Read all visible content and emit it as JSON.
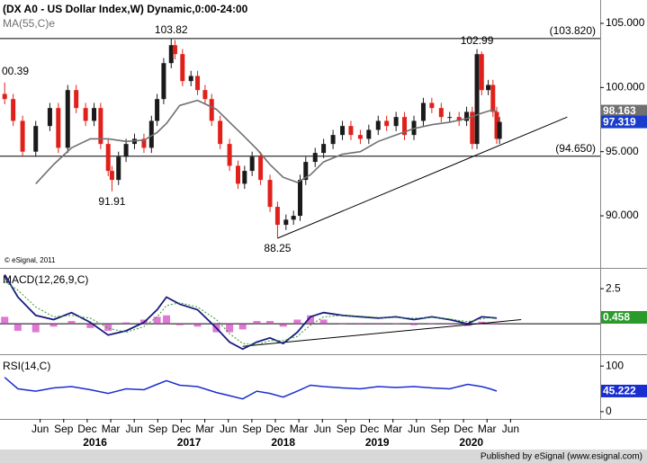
{
  "chart_data": [
    {
      "type": "candlestick",
      "title": "(DX A0 - US Dollar Index,W) Dynamic,0:00-24:00",
      "watermark": "© eSignal, 2011",
      "up_color": "#1a1a1a",
      "down_color": "#e0201a",
      "x": [
        2015.04,
        2015.13,
        2015.23,
        2015.37,
        2015.52,
        2015.61,
        2015.71,
        2015.8,
        2015.9,
        2015.99,
        2016.06,
        2016.14,
        2016.18,
        2016.25,
        2016.33,
        2016.42,
        2016.52,
        2016.6,
        2016.66,
        2016.73,
        2016.81,
        2016.85,
        2016.93,
        2017.02,
        2017.09,
        2017.17,
        2017.24,
        2017.33,
        2017.43,
        2017.52,
        2017.59,
        2017.67,
        2017.76,
        2017.86,
        2017.94,
        2018.03,
        2018.11,
        2018.18,
        2018.24,
        2018.34,
        2018.43,
        2018.53,
        2018.63,
        2018.72,
        2018.82,
        2018.91,
        2019.01,
        2019.1,
        2019.2,
        2019.29,
        2019.39,
        2019.49,
        2019.58,
        2019.68,
        2019.77,
        2019.87,
        2019.95,
        2020.01,
        2020.06,
        2020.11,
        2020.18,
        2020.23,
        2020.27,
        2020.3
      ],
      "open": [
        99.5,
        99.1,
        97.4,
        95.0,
        97.0,
        98.4,
        95.3,
        99.8,
        98.4,
        97.4,
        98.4,
        95.6,
        93.5,
        92.8,
        94.6,
        95.6,
        96.0,
        95.3,
        97.4,
        99.1,
        101.9,
        103.3,
        102.6,
        100.5,
        100.9,
        99.8,
        99.1,
        97.4,
        95.6,
        93.9,
        92.5,
        93.5,
        94.6,
        92.8,
        90.7,
        89.3,
        89.7,
        90.0,
        92.8,
        94.2,
        94.9,
        95.6,
        96.3,
        97.0,
        96.3,
        96.0,
        96.7,
        97.4,
        97.0,
        97.7,
        96.3,
        97.4,
        98.8,
        98.4,
        97.7,
        97.7,
        97.4,
        98.1,
        95.6,
        102.6,
        99.8,
        100.2,
        98.1,
        96.0
      ],
      "high": [
        100.39,
        99.5,
        97.8,
        97.4,
        98.8,
        98.8,
        100.2,
        100.2,
        98.8,
        98.8,
        98.8,
        96.0,
        93.9,
        95.0,
        96.0,
        96.4,
        96.4,
        97.8,
        99.5,
        102.3,
        103.82,
        103.7,
        103.0,
        101.3,
        101.3,
        100.2,
        99.5,
        97.8,
        96.0,
        94.3,
        93.9,
        95.0,
        95.0,
        93.2,
        91.1,
        90.1,
        90.4,
        93.2,
        94.6,
        95.3,
        96.0,
        96.7,
        97.4,
        97.4,
        96.7,
        97.1,
        97.8,
        97.8,
        98.1,
        98.1,
        97.8,
        99.2,
        99.2,
        98.8,
        98.1,
        98.1,
        98.5,
        98.5,
        102.99,
        102.8,
        100.6,
        100.6,
        98.5,
        97.7
      ],
      "low": [
        98.7,
        97.0,
        94.6,
        94.6,
        96.6,
        94.9,
        94.9,
        98.0,
        97.0,
        97.0,
        95.2,
        93.1,
        91.91,
        92.4,
        94.2,
        95.2,
        94.9,
        94.9,
        97.0,
        98.7,
        101.5,
        102.2,
        100.1,
        100.1,
        99.4,
        98.7,
        97.0,
        95.2,
        93.5,
        92.1,
        92.1,
        93.1,
        92.4,
        90.3,
        88.25,
        88.9,
        89.3,
        89.6,
        92.4,
        93.8,
        94.5,
        95.2,
        95.9,
        95.9,
        95.6,
        95.6,
        96.3,
        96.6,
        96.6,
        95.9,
        95.9,
        97.0,
        98.0,
        97.3,
        97.3,
        97.0,
        97.0,
        95.2,
        95.2,
        99.4,
        99.4,
        97.7,
        95.6,
        95.6
      ],
      "close": [
        99.1,
        97.4,
        95.0,
        97.0,
        98.4,
        95.3,
        99.8,
        98.4,
        97.4,
        98.4,
        95.6,
        93.5,
        92.8,
        94.6,
        95.6,
        96.0,
        95.3,
        97.4,
        99.1,
        101.9,
        103.3,
        102.6,
        100.5,
        100.9,
        99.8,
        99.1,
        97.4,
        95.6,
        93.9,
        92.5,
        93.5,
        94.6,
        92.8,
        90.7,
        89.3,
        89.7,
        90.0,
        92.8,
        94.2,
        94.9,
        95.6,
        96.3,
        97.0,
        96.3,
        96.0,
        96.7,
        97.4,
        97.0,
        97.7,
        96.3,
        97.4,
        98.8,
        98.4,
        97.7,
        97.7,
        97.4,
        98.1,
        95.6,
        102.6,
        99.8,
        100.2,
        98.1,
        96.0,
        97.319
      ],
      "last_color": "#1a3ccc",
      "ma": {
        "name": "MA(55,C)e",
        "color": "#707070",
        "x": [
          2015.37,
          2015.56,
          2015.75,
          2015.95,
          2016.14,
          2016.33,
          2016.52,
          2016.66,
          2016.76,
          2016.9,
          2017.09,
          2017.29,
          2017.43,
          2017.57,
          2017.72,
          2017.86,
          2018.0,
          2018.15,
          2018.29,
          2018.43,
          2018.63,
          2018.82,
          2019.01,
          2019.2,
          2019.39,
          2019.58,
          2019.77,
          2019.96,
          2020.11,
          2020.2,
          2020.27
        ],
        "values": [
          92.5,
          94.0,
          95.3,
          96.0,
          96.0,
          95.8,
          95.9,
          96.5,
          97.2,
          98.6,
          99.0,
          98.3,
          97.3,
          96.3,
          95.2,
          94.0,
          93.0,
          92.6,
          93.2,
          94.2,
          94.8,
          95.0,
          95.8,
          96.3,
          96.8,
          97.1,
          97.3,
          97.6,
          98.0,
          98.2,
          98.163
        ]
      },
      "hlines": [
        {
          "value": 103.82,
          "label": "(103.820)"
        },
        {
          "value": 94.65,
          "label": "(94.650)"
        }
      ],
      "trendline": {
        "x": [
          2017.94,
          2021.02
        ],
        "values": [
          88.25,
          97.7
        ]
      },
      "annotations": [
        "00.39",
        "103.82",
        "91.91",
        "88.25",
        "102.99"
      ],
      "ylim": [
        85.94,
        106.82
      ],
      "yticks": [
        {
          "value": 105,
          "label": "105.000"
        },
        {
          "value": 100,
          "label": "100.000"
        },
        {
          "value": 95,
          "label": "95.000"
        },
        {
          "value": 90,
          "label": "90.000"
        }
      ]
    },
    {
      "type": "macd",
      "title": "MACD(12,26,9,C)",
      "x": [
        2015.04,
        2015.18,
        2015.37,
        2015.56,
        2015.75,
        2015.95,
        2016.14,
        2016.33,
        2016.52,
        2016.66,
        2016.76,
        2016.9,
        2017.09,
        2017.29,
        2017.43,
        2017.57,
        2017.72,
        2017.86,
        2018.0,
        2018.15,
        2018.29,
        2018.43,
        2018.63,
        2018.82,
        2019.01,
        2019.2,
        2019.39,
        2019.58,
        2019.77,
        2019.96,
        2020.11,
        2020.2,
        2020.27
      ],
      "series": [
        {
          "color": "#1a1a80",
          "values": [
            3.5,
            1.9,
            0.6,
            0.3,
            0.8,
            0.1,
            -0.8,
            -0.5,
            0.1,
            1.0,
            1.9,
            1.4,
            1.0,
            -0.3,
            -1.3,
            -1.8,
            -1.3,
            -1.0,
            -1.4,
            -0.6,
            0.5,
            0.8,
            0.6,
            0.5,
            0.4,
            0.5,
            0.3,
            0.5,
            0.3,
            0.0,
            0.5,
            0.45,
            0.404
          ]
        },
        {
          "color": "#2a9a2a",
          "dashed": true,
          "values": [
            3.0,
            2.4,
            1.2,
            0.5,
            0.6,
            0.4,
            -0.3,
            -0.6,
            -0.2,
            0.5,
            1.3,
            1.5,
            1.2,
            0.3,
            -0.7,
            -1.4,
            -1.5,
            -1.2,
            -1.2,
            -0.9,
            -0.1,
            0.5,
            0.6,
            0.55,
            0.45,
            0.45,
            0.4,
            0.45,
            0.35,
            0.15,
            0.35,
            0.45,
            0.458
          ]
        }
      ],
      "histogram": {
        "color": "#d040c0",
        "values": [
          0.5,
          -0.5,
          -0.6,
          -0.2,
          0.2,
          -0.3,
          -0.5,
          0.1,
          0.3,
          0.5,
          0.6,
          -0.1,
          -0.2,
          -0.6,
          -0.6,
          -0.4,
          0.2,
          0.2,
          -0.2,
          0.3,
          0.6,
          0.3,
          0,
          -0.05,
          -0.05,
          0.05,
          -0.1,
          0.05,
          -0.05,
          -0.15,
          0.15,
          0,
          -0.054
        ]
      },
      "hline": 0,
      "trendline": {
        "x": [
          2017.57,
          2020.53
        ],
        "values": [
          -1.6,
          0.3
        ]
      },
      "ylim": [
        -2.1,
        3.85
      ],
      "yticks": [
        2.5
      ]
    },
    {
      "type": "rsi",
      "title": "RSI(14,C)",
      "x": [
        2015.04,
        2015.18,
        2015.37,
        2015.56,
        2015.75,
        2015.95,
        2016.14,
        2016.33,
        2016.52,
        2016.66,
        2016.76,
        2016.9,
        2017.09,
        2017.29,
        2017.43,
        2017.57,
        2017.72,
        2017.86,
        2018.0,
        2018.15,
        2018.29,
        2018.43,
        2018.63,
        2018.82,
        2019.01,
        2019.2,
        2019.39,
        2019.58,
        2019.77,
        2019.96,
        2020.11,
        2020.2,
        2020.27
      ],
      "color": "#1a2ed0",
      "values": [
        75,
        50,
        45,
        52,
        55,
        48,
        40,
        50,
        48,
        60,
        68,
        58,
        55,
        42,
        35,
        28,
        45,
        40,
        32,
        45,
        58,
        55,
        52,
        50,
        55,
        53,
        55,
        52,
        50,
        60,
        55,
        50,
        45.222
      ],
      "ylim": [
        -14,
        122
      ],
      "yticks": [
        100,
        0
      ],
      "xlim": [
        2014.99,
        2021.37
      ],
      "xticks": [
        {
          "value": 2015.417,
          "label": "Jun"
        },
        {
          "value": 2015.667,
          "label": "Sep"
        },
        {
          "value": 2015.917,
          "label": "Dec"
        },
        {
          "value": 2016.167,
          "label": "Mar"
        },
        {
          "value": 2016.417,
          "label": "Jun"
        },
        {
          "value": 2016.667,
          "label": "Sep"
        },
        {
          "value": 2016.917,
          "label": "Dec"
        },
        {
          "value": 2017.167,
          "label": "Mar"
        },
        {
          "value": 2017.417,
          "label": "Jun"
        },
        {
          "value": 2017.667,
          "label": "Sep"
        },
        {
          "value": 2017.917,
          "label": "Dec"
        },
        {
          "value": 2018.167,
          "label": "Mar"
        },
        {
          "value": 2018.417,
          "label": "Jun"
        },
        {
          "value": 2018.667,
          "label": "Sep"
        },
        {
          "value": 2018.917,
          "label": "Dec"
        },
        {
          "value": 2019.167,
          "label": "Mar"
        },
        {
          "value": 2019.417,
          "label": "Jun"
        },
        {
          "value": 2019.667,
          "label": "Sep"
        },
        {
          "value": 2019.917,
          "label": "Dec"
        },
        {
          "value": 2020.167,
          "label": "Mar"
        },
        {
          "value": 2020.417,
          "label": "Jun"
        }
      ],
      "year_ticks": [
        2016,
        2017,
        2018,
        2019,
        2020
      ]
    }
  ],
  "footer": "Published by eSignal (www.esignal.com)"
}
